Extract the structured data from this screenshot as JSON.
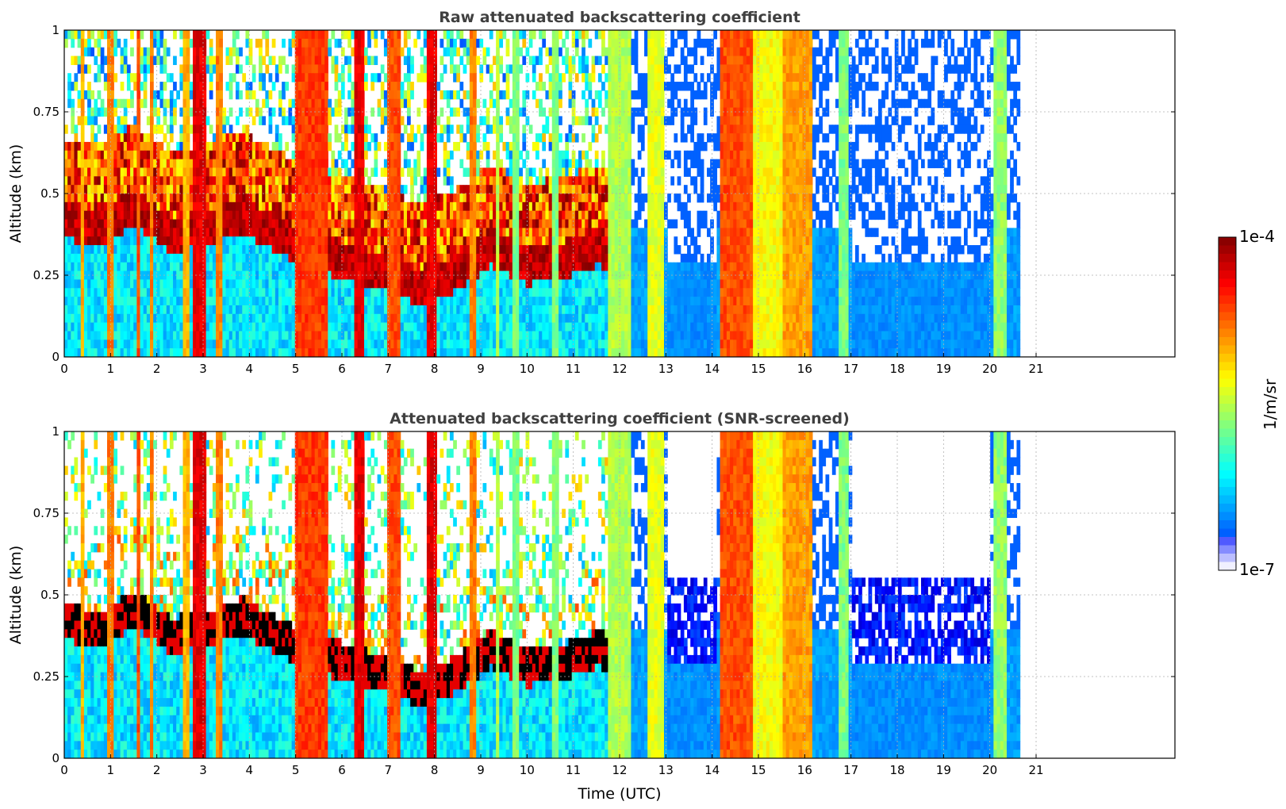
{
  "chart_data": [
    {
      "type": "heatmap",
      "title": "Raw attenuated backscattering coefficient",
      "xlabel": "",
      "ylabel": "Altitude (km)",
      "xlim": [
        0,
        24
      ],
      "ylim": [
        0,
        1
      ],
      "xticks": [
        "0",
        "1",
        "2",
        "3",
        "4",
        "5",
        "6",
        "7",
        "8",
        "9",
        "10",
        "11",
        "12",
        "13",
        "14",
        "15",
        "16",
        "17",
        "18",
        "19",
        "20",
        "21"
      ],
      "yticks": [
        "0",
        "0.25",
        "0.5",
        "0.75",
        "1"
      ],
      "grid": true,
      "data_end_time": 20.65,
      "cloud_base_km": [
        0.42,
        0.4,
        0.46,
        0.38,
        0.4,
        0.44,
        0.38,
        0.32,
        0.3,
        0.26,
        0.22,
        0.26,
        0.34,
        0.28,
        0.3,
        0.34,
        0.28,
        0.26,
        0.4,
        0.42,
        0.44,
        0.5,
        0.48,
        0.5,
        0.6,
        0.6,
        0.58
      ],
      "bands": [
        {
          "t0": 0.35,
          "t1": 0.45,
          "level": 0.7
        },
        {
          "t0": 0.95,
          "t1": 1.05,
          "level": 0.75
        },
        {
          "t0": 1.55,
          "t1": 1.65,
          "level": 0.8
        },
        {
          "t0": 1.85,
          "t1": 1.95,
          "level": 0.75
        },
        {
          "t0": 2.55,
          "t1": 2.7,
          "level": 0.7
        },
        {
          "t0": 2.8,
          "t1": 3.05,
          "level": 0.9
        },
        {
          "t0": 3.3,
          "t1": 3.45,
          "level": 0.75
        },
        {
          "t0": 4.95,
          "t1": 5.7,
          "level": 0.82
        },
        {
          "t0": 6.3,
          "t1": 6.45,
          "level": 0.9
        },
        {
          "t0": 7.0,
          "t1": 7.25,
          "level": 0.8
        },
        {
          "t0": 7.85,
          "t1": 8.05,
          "level": 0.9
        },
        {
          "t0": 8.75,
          "t1": 8.9,
          "level": 0.75
        },
        {
          "t0": 9.3,
          "t1": 9.4,
          "level": 0.55
        },
        {
          "t0": 9.7,
          "t1": 9.8,
          "level": 0.5
        },
        {
          "t0": 10.55,
          "t1": 10.65,
          "level": 0.5
        },
        {
          "t0": 11.75,
          "t1": 12.25,
          "level": 0.55
        },
        {
          "t0": 12.6,
          "t1": 12.95,
          "level": 0.6
        },
        {
          "t0": 14.15,
          "t1": 14.9,
          "level": 0.8
        },
        {
          "t0": 14.9,
          "t1": 15.5,
          "level": 0.62
        },
        {
          "t0": 15.5,
          "t1": 16.15,
          "level": 0.72
        },
        {
          "t0": 16.75,
          "t1": 16.95,
          "level": 0.5
        },
        {
          "t0": 20.05,
          "t1": 20.35,
          "level": 0.52
        }
      ]
    },
    {
      "type": "heatmap",
      "title": "Attenuated backscattering coefficient (SNR-screened)",
      "xlabel": "Time (UTC)",
      "ylabel": "Altitude (km)",
      "xlim": [
        0,
        24
      ],
      "ylim": [
        0,
        1
      ],
      "xticks": [
        "0",
        "1",
        "2",
        "3",
        "4",
        "5",
        "6",
        "7",
        "8",
        "9",
        "10",
        "11",
        "12",
        "13",
        "14",
        "15",
        "16",
        "17",
        "18",
        "19",
        "20",
        "21"
      ],
      "yticks": [
        "0",
        "0.25",
        "0.5",
        "0.75",
        "1"
      ],
      "grid": true,
      "data_end_time": 20.65,
      "screened": true
    }
  ],
  "colorbar": {
    "label": "1/m/sr",
    "max_label": "1e-4",
    "min_label": "1e-7",
    "colormap": "jet"
  }
}
